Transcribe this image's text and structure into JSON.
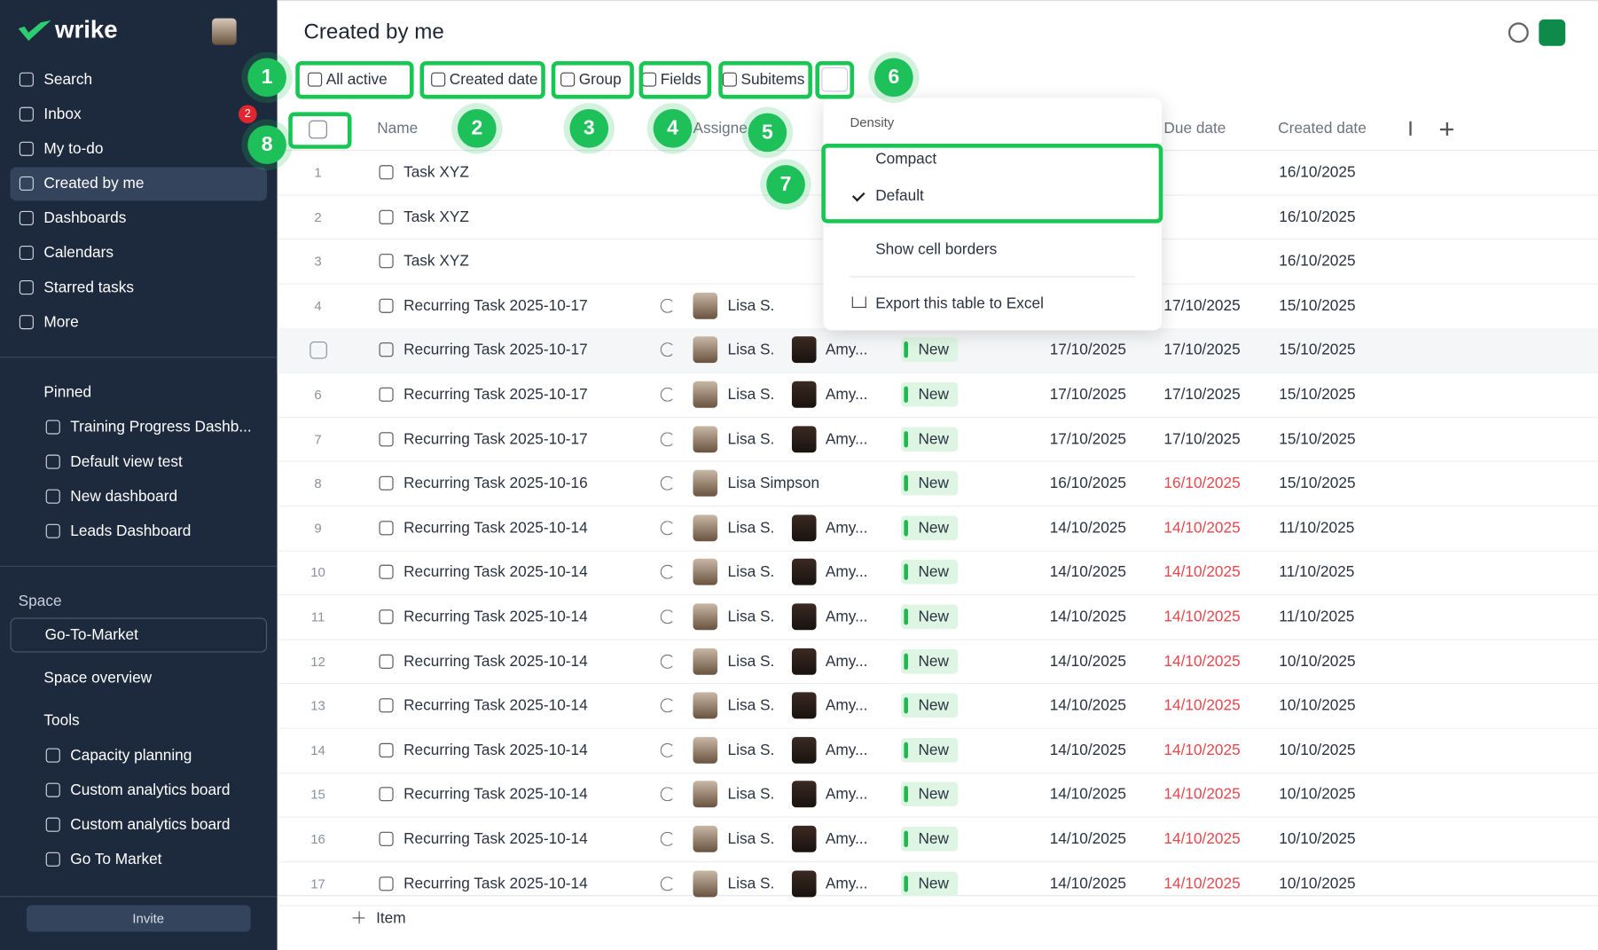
{
  "sidebar": {
    "logo": "wrike",
    "nav": [
      "Search",
      "Inbox",
      "My to-do",
      "Created by me",
      "Dashboards",
      "Calendars",
      "Starred tasks",
      "More"
    ],
    "active": 3,
    "inbox_badge": "2",
    "pinned_title": "Pinned",
    "pinned": [
      "Training Progress Dashb...",
      "Default view test",
      "New dashboard",
      "Leads Dashboard"
    ],
    "space_title": "Space",
    "space_name": "Go-To-Market",
    "space_overview": "Space overview",
    "tools_title": "Tools",
    "tools": [
      "Capacity planning",
      "Custom analytics board",
      "Custom analytics board",
      "Go To Market"
    ],
    "invite": "Invite"
  },
  "header": {
    "title": "Created by me"
  },
  "toolbar": [
    "All active",
    "Created date",
    "Group",
    "Fields",
    "Subitems"
  ],
  "table": {
    "columns": [
      "Name",
      "Assigne",
      "Due date",
      "Created date"
    ],
    "rows": [
      {
        "num": "1",
        "name": "Task XYZ",
        "created": "16/10/2025"
      },
      {
        "num": "2",
        "name": "Task XYZ",
        "created": "16/10/2025"
      },
      {
        "num": "3",
        "name": "Task XYZ",
        "created": "16/10/2025"
      },
      {
        "num": "4",
        "name": "Recurring Task 2025-10-17",
        "assignees": [
          "Lisa S."
        ],
        "due": "17/10/2025",
        "created": "15/10/2025"
      },
      {
        "num": null,
        "name": "Recurring Task 2025-10-17",
        "assignees": [
          "Lisa S.",
          "Amy..."
        ],
        "status": "New",
        "start": "17/10/2025",
        "due": "17/10/2025",
        "created": "15/10/2025",
        "hover": true
      },
      {
        "num": "6",
        "name": "Recurring Task 2025-10-17",
        "assignees": [
          "Lisa S.",
          "Amy..."
        ],
        "status": "New",
        "start": "17/10/2025",
        "due": "17/10/2025",
        "created": "15/10/2025"
      },
      {
        "num": "7",
        "name": "Recurring Task 2025-10-17",
        "assignees": [
          "Lisa S.",
          "Amy..."
        ],
        "status": "New",
        "start": "17/10/2025",
        "due": "17/10/2025",
        "created": "15/10/2025"
      },
      {
        "num": "8",
        "name": "Recurring Task 2025-10-16",
        "assignees": [
          "Lisa Simpson"
        ],
        "status": "New",
        "start": "16/10/2025",
        "due": "16/10/2025",
        "overdue": true,
        "created": "15/10/2025"
      },
      {
        "num": "9",
        "name": "Recurring Task 2025-10-14",
        "assignees": [
          "Lisa S.",
          "Amy..."
        ],
        "status": "New",
        "start": "14/10/2025",
        "due": "14/10/2025",
        "overdue": true,
        "created": "11/10/2025"
      },
      {
        "num": "10",
        "name": "Recurring Task 2025-10-14",
        "assignees": [
          "Lisa S.",
          "Amy..."
        ],
        "status": "New",
        "start": "14/10/2025",
        "due": "14/10/2025",
        "overdue": true,
        "created": "11/10/2025"
      },
      {
        "num": "11",
        "name": "Recurring Task 2025-10-14",
        "assignees": [
          "Lisa S.",
          "Amy..."
        ],
        "status": "New",
        "start": "14/10/2025",
        "due": "14/10/2025",
        "overdue": true,
        "created": "11/10/2025"
      },
      {
        "num": "12",
        "name": "Recurring Task 2025-10-14",
        "assignees": [
          "Lisa S.",
          "Amy..."
        ],
        "status": "New",
        "start": "14/10/2025",
        "due": "14/10/2025",
        "overdue": true,
        "created": "10/10/2025"
      },
      {
        "num": "13",
        "name": "Recurring Task 2025-10-14",
        "assignees": [
          "Lisa S.",
          "Amy..."
        ],
        "status": "New",
        "start": "14/10/2025",
        "due": "14/10/2025",
        "overdue": true,
        "created": "10/10/2025"
      },
      {
        "num": "14",
        "name": "Recurring Task 2025-10-14",
        "assignees": [
          "Lisa S.",
          "Amy..."
        ],
        "status": "New",
        "start": "14/10/2025",
        "due": "14/10/2025",
        "overdue": true,
        "created": "10/10/2025"
      },
      {
        "num": "15",
        "name": "Recurring Task 2025-10-14",
        "assignees": [
          "Lisa S.",
          "Amy..."
        ],
        "status": "New",
        "start": "14/10/2025",
        "due": "14/10/2025",
        "overdue": true,
        "created": "10/10/2025"
      },
      {
        "num": "16",
        "name": "Recurring Task 2025-10-14",
        "assignees": [
          "Lisa S.",
          "Amy..."
        ],
        "status": "New",
        "start": "14/10/2025",
        "due": "14/10/2025",
        "overdue": true,
        "created": "10/10/2025"
      },
      {
        "num": "17",
        "name": "Recurring Task 2025-10-14",
        "assignees": [
          "Lisa S.",
          "Amy..."
        ],
        "status": "New",
        "start": "14/10/2025",
        "due": "14/10/2025",
        "overdue": true,
        "created": "10/10/2025"
      }
    ],
    "add_item": "Item"
  },
  "menu": {
    "section": "Density",
    "options": [
      "Compact",
      "Default"
    ],
    "selected": 1,
    "cell_borders": "Show cell borders",
    "export": "Export this table to Excel"
  },
  "annotations": [
    "1",
    "2",
    "3",
    "4",
    "5",
    "6",
    "7",
    "8"
  ]
}
